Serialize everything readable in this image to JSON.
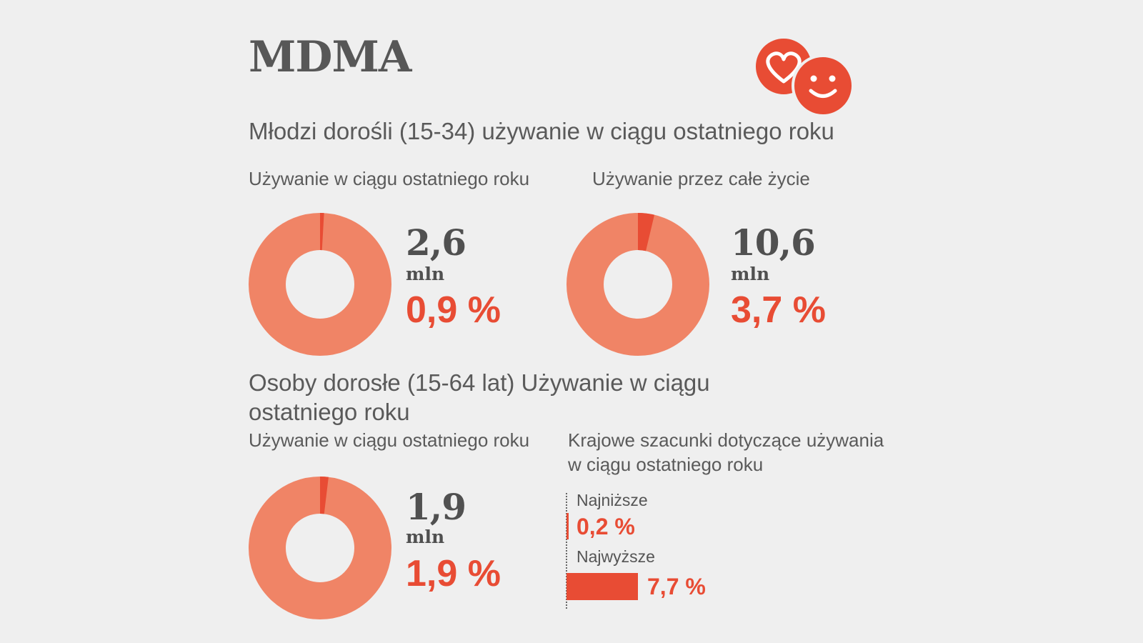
{
  "title": "MDMA",
  "icons": {
    "heart": "heart-icon",
    "smiley": "smiley-icon",
    "color": "#e84c34"
  },
  "colors": {
    "ring": "#f08466",
    "highlight": "#e84c34",
    "text": "#555555"
  },
  "section1": {
    "heading": "Młodzi dorośli (15-34) używanie w ciągu ostatniego roku",
    "left_label": "Używanie w ciągu ostatniego roku",
    "right_label": "Używanie przez całe życie"
  },
  "section2": {
    "heading": "Osoby dorosłe (15-64 lat) Używanie w ciągu ostatniego roku",
    "left_label": "Używanie w ciągu ostatniego roku",
    "right_label": "Krajowe szacunki dotyczące używania w ciągu ostatniego roku"
  },
  "chart_data": [
    {
      "type": "pie",
      "name": "young-adults-last-year",
      "count": "2,6",
      "unit": "mln",
      "percent_label": "0,9 %",
      "percent": 0.9
    },
    {
      "type": "pie",
      "name": "young-adults-lifetime",
      "count": "10,6",
      "unit": "mln",
      "percent_label": "3,7 %",
      "percent": 3.7
    },
    {
      "type": "pie",
      "name": "adults-last-year",
      "count": "1,9",
      "unit": "mln",
      "percent_label": "1,9 %",
      "percent": 1.9
    },
    {
      "type": "bar",
      "name": "national-estimates",
      "categories": [
        "Najniższe",
        "Najwyższe"
      ],
      "value_labels": [
        "0,2 %",
        "7,7 %"
      ],
      "values": [
        0.2,
        7.7
      ]
    }
  ]
}
